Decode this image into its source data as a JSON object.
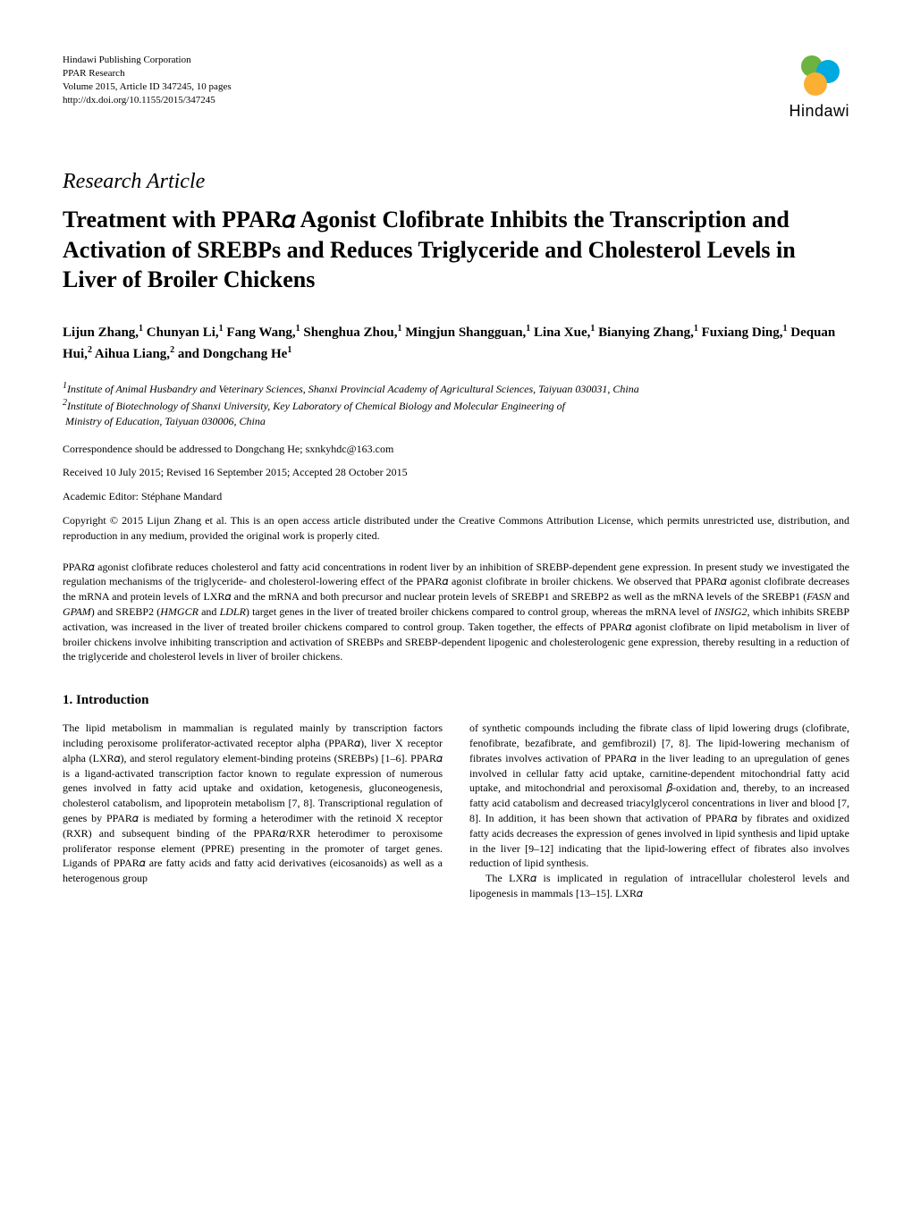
{
  "publisher": {
    "line1": "Hindawi Publishing Corporation",
    "line2": "PPAR Research",
    "line3": "Volume 2015, Article ID 347245, 10 pages",
    "line4": "http://dx.doi.org/10.1155/2015/347245"
  },
  "logo": {
    "name": "Hindawi",
    "colors": {
      "top": "#6cb33f",
      "middle": "#00a9e0",
      "bottom": "#fbb033"
    }
  },
  "article_type": "Research Article",
  "title": "Treatment with PPAR𝛼 Agonist Clofibrate Inhibits the Transcription and Activation of SREBPs and Reduces Triglyceride and Cholesterol Levels in Liver of Broiler Chickens",
  "authors_html": "Lijun Zhang,<sup>1</sup> Chunyan Li,<sup>1</sup> Fang Wang,<sup>1</sup> Shenghua Zhou,<sup>1</sup> Mingjun Shangguan,<sup>1</sup> Lina Xue,<sup>1</sup> Bianying Zhang,<sup>1</sup> Fuxiang Ding,<sup>1</sup> Dequan Hui,<sup>2</sup> Aihua Liang,<sup>2</sup> and Dongchang He<sup>1</sup>",
  "affiliations_html": "<sup>1</sup>Institute of Animal Husbandry and Veterinary Sciences, Shanxi Provincial Academy of Agricultural Sciences, Taiyuan 030031, China<br><sup>2</sup>Institute of Biotechnology of Shanxi University, Key Laboratory of Chemical Biology and Molecular Engineering of<br>&nbsp;Ministry of Education, Taiyuan 030006, China",
  "correspondence": "Correspondence should be addressed to Dongchang He; sxnkyhdc@163.com",
  "dates": "Received 10 July 2015; Revised 16 September 2015; Accepted 28 October 2015",
  "editor": "Academic Editor: Stéphane Mandard",
  "copyright": "Copyright © 2015 Lijun Zhang et al. This is an open access article distributed under the Creative Commons Attribution License, which permits unrestricted use, distribution, and reproduction in any medium, provided the original work is properly cited.",
  "abstract_html": "PPAR𝛼 agonist clofibrate reduces cholesterol and fatty acid concentrations in rodent liver by an inhibition of SREBP-dependent gene expression. In present study we investigated the regulation mechanisms of the triglyceride- and cholesterol-lowering effect of the PPAR𝛼 agonist clofibrate in broiler chickens. We observed that PPAR𝛼 agonist clofibrate decreases the mRNA and protein levels of LXR𝛼 and the mRNA and both precursor and nuclear protein levels of SREBP1 and SREBP2 as well as the mRNA levels of the SREBP1 (<em>FASN</em> and <em>GPAM</em>) and SREBP2 (<em>HMGCR</em> and <em>LDLR</em>) target genes in the liver of treated broiler chickens compared to control group, whereas the mRNA level of <em>INSIG2</em>, which inhibits SREBP activation, was increased in the liver of treated broiler chickens compared to control group. Taken together, the effects of PPAR𝛼 agonist clofibrate on lipid metabolism in liver of broiler chickens involve inhibiting transcription and activation of SREBPs and SREBP-dependent lipogenic and cholesterologenic gene expression, thereby resulting in a reduction of the triglyceride and cholesterol levels in liver of broiler chickens.",
  "section1_heading": "1. Introduction",
  "column_left_html": "<p>The lipid metabolism in mammalian is regulated mainly by transcription factors including peroxisome proliferator-activated receptor alpha (PPAR𝛼), liver X receptor alpha (LXR𝛼), and sterol regulatory element-binding proteins (SREBPs) [1–6]. PPAR𝛼 is a ligand-activated transcription factor known to regulate expression of numerous genes involved in fatty acid uptake and oxidation, ketogenesis, gluconeogenesis, cholesterol catabolism, and lipoprotein metabolism [7, 8]. Transcriptional regulation of genes by PPAR𝛼 is mediated by forming a heterodimer with the retinoid X receptor (RXR) and subsequent binding of the PPAR𝛼/RXR heterodimer to peroxisome proliferator response element (PPRE) presenting in the promoter of target genes. Ligands of PPAR𝛼 are fatty acids and fatty acid derivatives (eicosanoids) as well as a heterogenous group</p>",
  "column_right_html": "<p>of synthetic compounds including the fibrate class of lipid lowering drugs (clofibrate, fenofibrate, bezafibrate, and gemfibrozil) [7, 8]. The lipid-lowering mechanism of fibrates involves activation of PPAR𝛼 in the liver leading to an upregulation of genes involved in cellular fatty acid uptake, carnitine-dependent mitochondrial fatty acid uptake, and mitochondrial and peroxisomal 𝛽-oxidation and, thereby, to an increased fatty acid catabolism and decreased triacylglycerol concentrations in liver and blood [7, 8]. In addition, it has been shown that activation of PPAR𝛼 by fibrates and oxidized fatty acids decreases the expression of genes involved in lipid synthesis and lipid uptake in the liver [9–12] indicating that the lipid-lowering effect of fibrates also involves reduction of lipid synthesis.</p><p>The LXR𝛼 is implicated in regulation of intracellular cholesterol levels and lipogenesis in mammals [13–15]. LXR𝛼</p>"
}
